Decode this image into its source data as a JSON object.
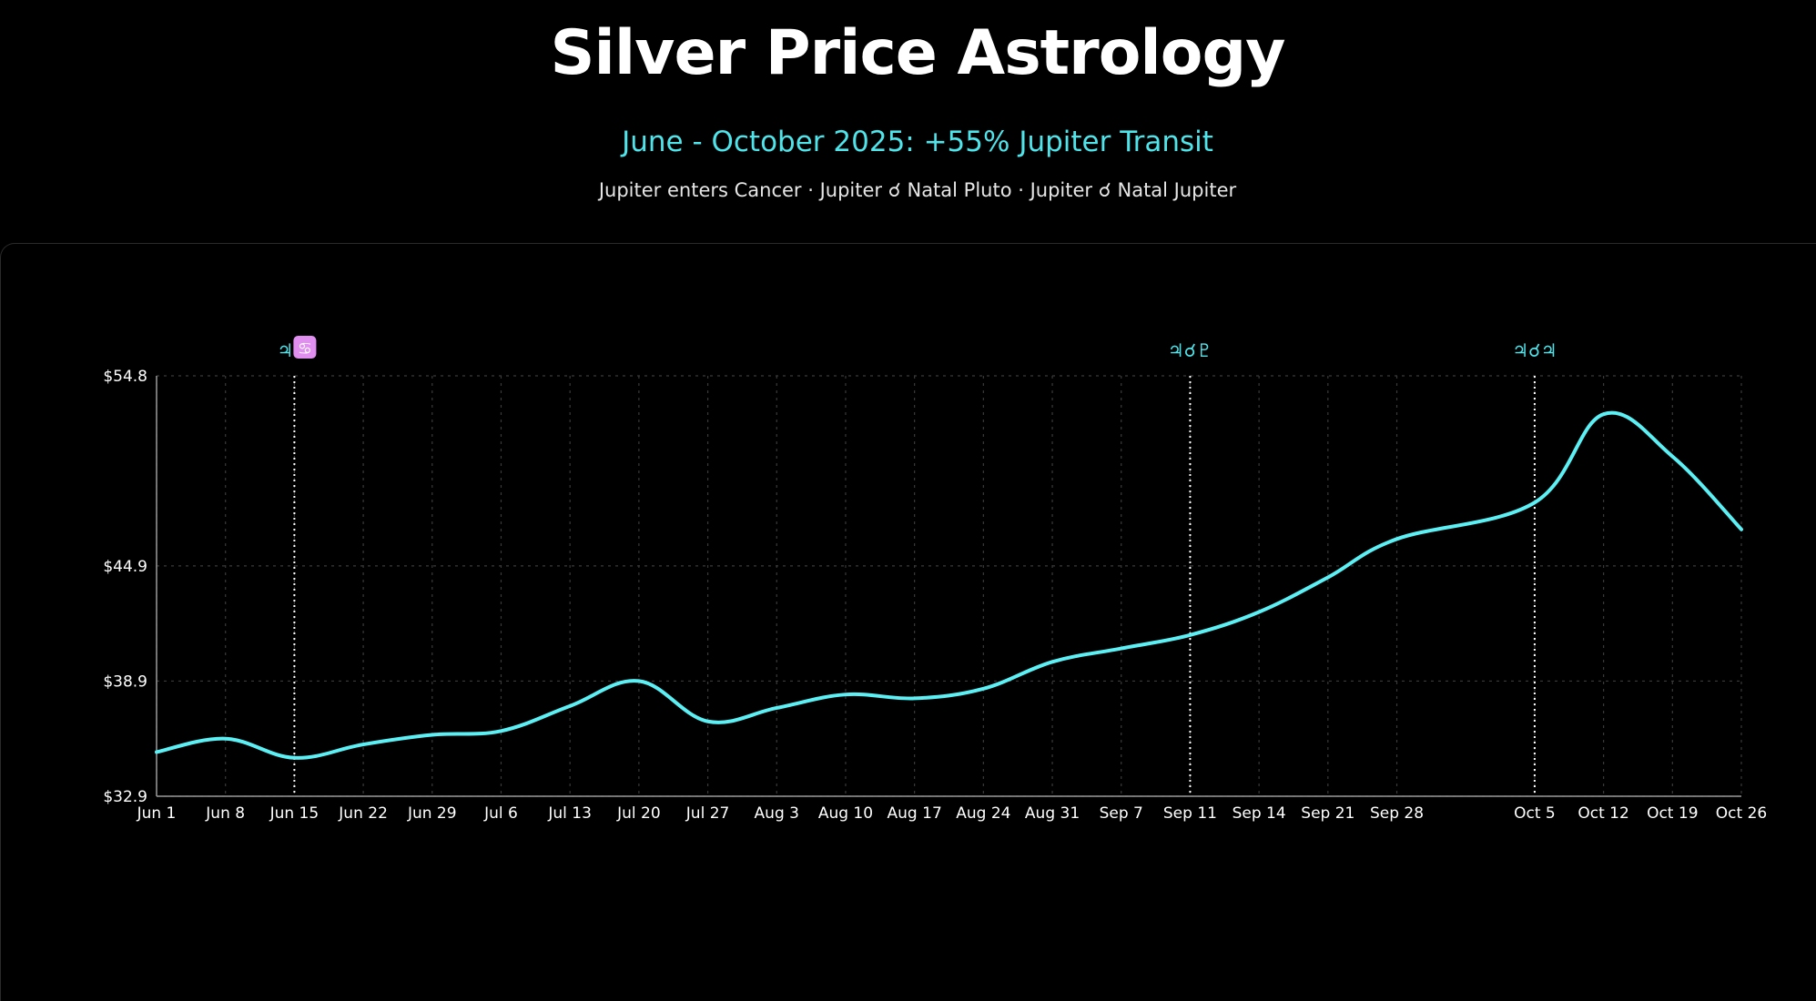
{
  "header": {
    "title": "Silver Price Astrology",
    "subtitle": "June - October 2025: +55% Jupiter Transit",
    "description": "Jupiter enters Cancer · Jupiter ☌ Natal Pluto · Jupiter ☌ Natal Jupiter"
  },
  "colors": {
    "background": "#000000",
    "line": "#5cf0f5",
    "accent": "#4fe3ea",
    "grid": "#3a3a3a",
    "marker": "#ffffff",
    "cancer_badge": "#e08ef0"
  },
  "chart_data": {
    "type": "line",
    "title": "",
    "xlabel": "",
    "ylabel": "",
    "x_ticks": [
      "Jun 1",
      "Jun 8",
      "Jun 15",
      "Jun 22",
      "Jun 29",
      "Jul 6",
      "Jul 13",
      "Jul 20",
      "Jul 27",
      "Aug 3",
      "Aug 10",
      "Aug 17",
      "Aug 24",
      "Aug 31",
      "Sep 7",
      "Sep 11",
      "Sep 14",
      "Sep 21",
      "Sep 28",
      "Oct 5",
      "Oct 12",
      "Oct 19",
      "Oct 26"
    ],
    "x_tick_days": [
      0,
      7,
      14,
      21,
      28,
      35,
      42,
      49,
      56,
      63,
      70,
      77,
      84,
      91,
      98,
      105,
      112,
      119,
      126,
      140,
      147,
      154,
      161
    ],
    "y_ticks": [
      "$32.9",
      "$38.9",
      "$44.9",
      "$54.8"
    ],
    "y_tick_values": [
      32.9,
      38.9,
      44.9,
      54.8
    ],
    "ylim": [
      32.9,
      54.8
    ],
    "grid": true,
    "series": [
      {
        "name": "",
        "x": [
          "Jun 1",
          "Jun 8",
          "Jun 15",
          "Jun 22",
          "Jun 29",
          "Jul 6",
          "Jul 13",
          "Jul 20",
          "Jul 27",
          "Aug 3",
          "Aug 10",
          "Aug 17",
          "Aug 24",
          "Aug 31",
          "Sep 7",
          "Sep 11",
          "Sep 14",
          "Sep 21",
          "Sep 28",
          "Oct 5",
          "Oct 12",
          "Oct 19",
          "Oct 26"
        ],
        "values": [
          35.2,
          35.9,
          34.9,
          35.6,
          36.1,
          36.3,
          37.6,
          38.9,
          36.8,
          37.5,
          38.2,
          38.0,
          38.5,
          39.9,
          40.6,
          41.3,
          42.5,
          44.3,
          46.3,
          48.2,
          52.8,
          50.6,
          46.8
        ]
      }
    ],
    "annotations": [
      {
        "x": "Jun 15",
        "label": "♃"
      },
      {
        "x": "Sep 11",
        "label": "♃☌♇"
      },
      {
        "x": "Oct 5",
        "label": "♃☌♃"
      }
    ],
    "annotation_badge": "♋"
  }
}
